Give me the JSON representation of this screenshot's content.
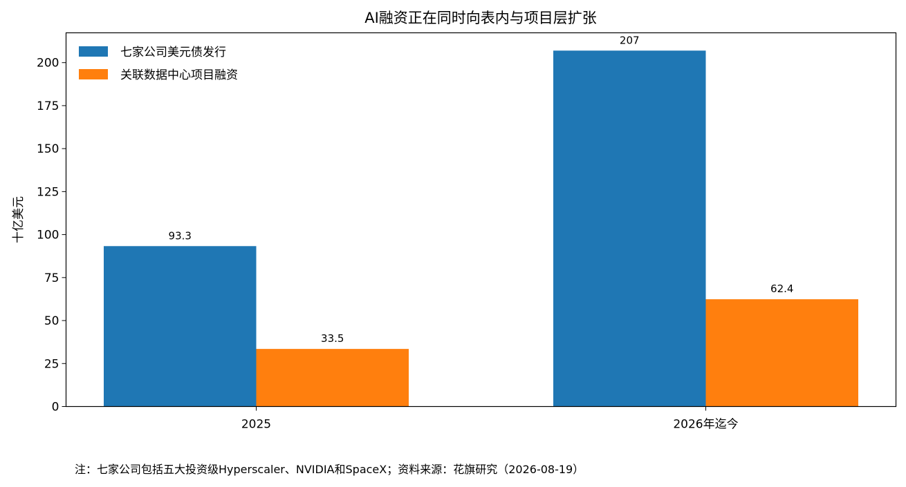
{
  "chart_data": {
    "type": "bar",
    "title": "AI融资正在同时向表内与项目层扩张",
    "xlabel": "",
    "ylabel": "十亿美元",
    "categories": [
      "2025",
      "2026年迄今"
    ],
    "series": [
      {
        "name": "七家公司美元债发行",
        "values": [
          93.3,
          207
        ],
        "labels": [
          "93.3",
          "207"
        ],
        "color": "#1f77b4"
      },
      {
        "name": "关联数据中心项目融资",
        "values": [
          33.5,
          62.4
        ],
        "labels": [
          "33.5",
          "62.4"
        ],
        "color": "#ff7f0e"
      }
    ],
    "ylim": [
      0,
      217.35
    ],
    "yticks": [
      0,
      25,
      50,
      75,
      100,
      125,
      150,
      175,
      200
    ],
    "grid": false,
    "legend_position": "top-left"
  },
  "footnote": "注：七家公司包括五大投资级Hyperscaler、NVIDIA和SpaceX；资料来源：花旗研究（2026-08-19）"
}
